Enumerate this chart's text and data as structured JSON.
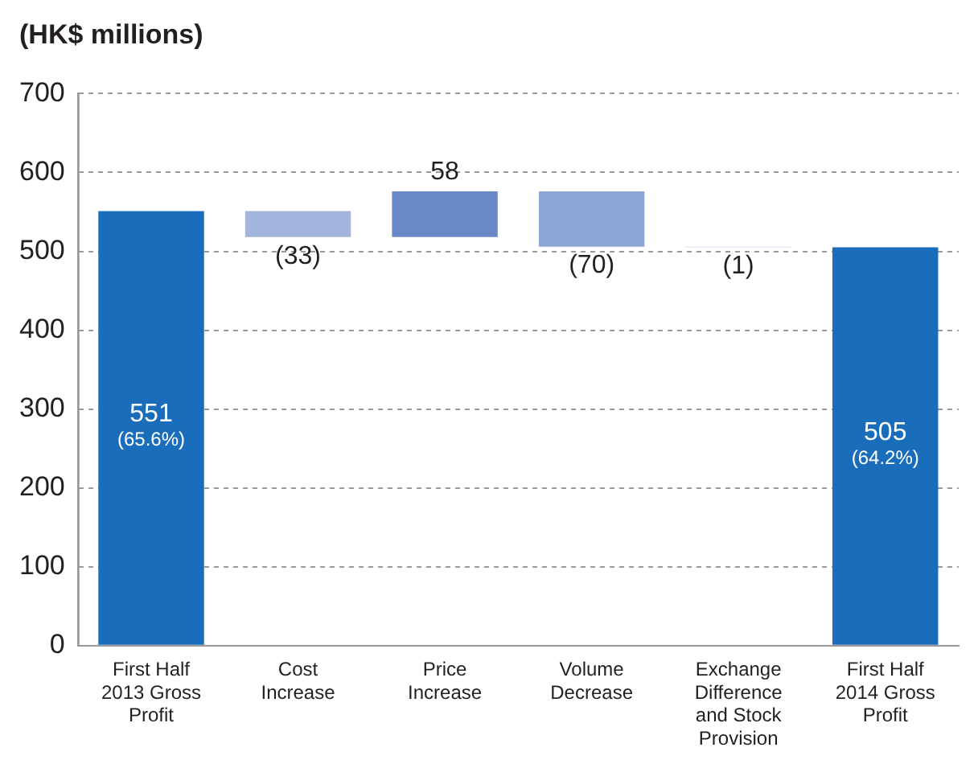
{
  "chart_data": {
    "type": "bar",
    "ylabel": "(HK$ millions)",
    "categories": [
      "First Half 2013 Gross Profit",
      "Cost Increase",
      "Price Increase",
      "Volume Decrease",
      "Exchange Difference and Stock Provision",
      "First Half 2014 Gross Profit"
    ],
    "values": [
      551,
      -33,
      58,
      -70,
      -1,
      505
    ],
    "base": [
      0,
      551,
      518,
      576,
      506,
      0
    ],
    "colors": [
      "#1a6dbb",
      "#a3b5dc",
      "#6889c6",
      "#8ca6d6",
      "#c5d0ea",
      "#1a6dbb"
    ],
    "value_labels": [
      "551 (65.6%)",
      "(33)",
      "58",
      "(70)",
      "(1)",
      "505 (64.2%)"
    ],
    "ylim": [
      0,
      700
    ],
    "yticks": [
      0,
      100,
      200,
      300,
      400,
      500,
      600,
      700
    ],
    "grid": "y",
    "legend": false
  }
}
